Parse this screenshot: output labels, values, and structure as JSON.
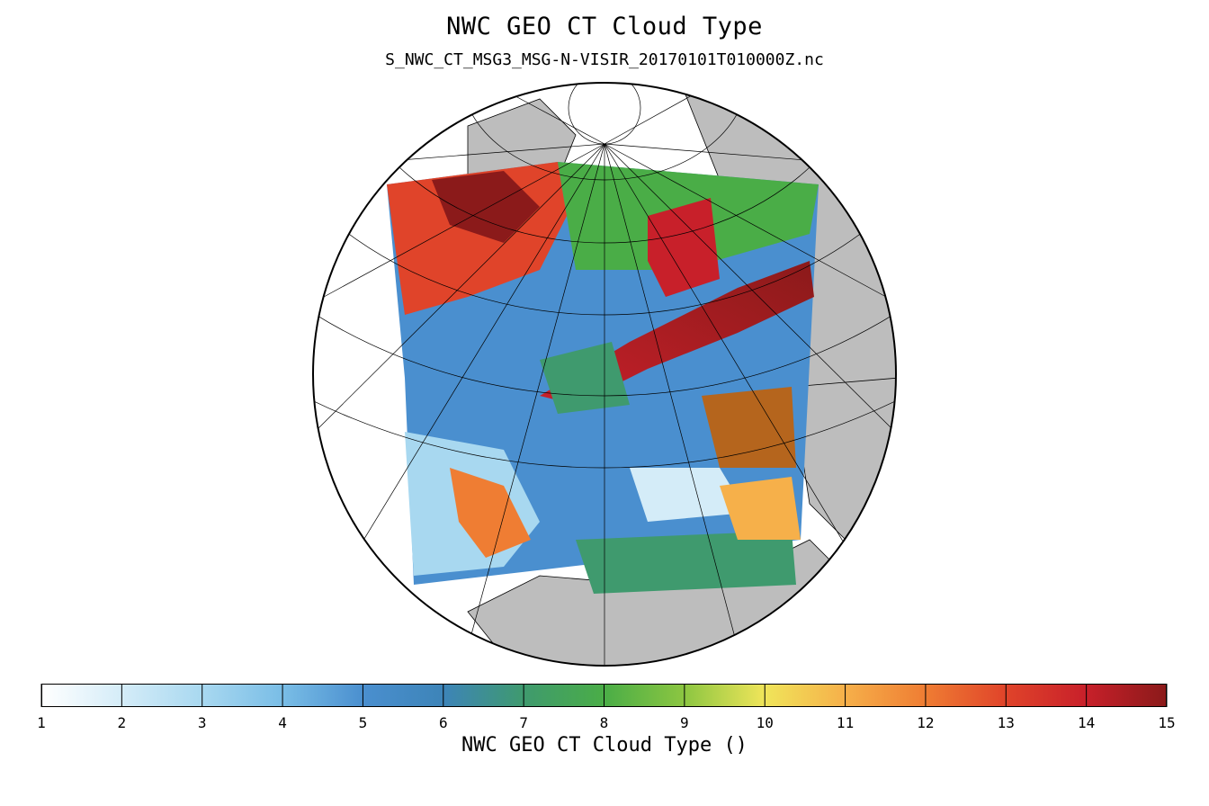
{
  "title": "NWC GEO CT Cloud Type",
  "subtitle": "S_NWC_CT_MSG3_MSG-N-VISIR_20170101T010000Z.nc",
  "colorbar": {
    "label": "NWC GEO CT Cloud Type ()",
    "min": 1,
    "max": 15,
    "ticks": [
      "1",
      "2",
      "3",
      "4",
      "5",
      "6",
      "7",
      "8",
      "9",
      "10",
      "11",
      "12",
      "13",
      "14",
      "15"
    ],
    "stops": [
      "#ffffff",
      "#d4ecf8",
      "#a8d8f0",
      "#79bde6",
      "#4a8fcf",
      "#3d84b8",
      "#3f9a6e",
      "#4aad47",
      "#8cc641",
      "#f0e55a",
      "#f6b04a",
      "#ef7d33",
      "#e0442a",
      "#c8202a",
      "#8b1a1a"
    ]
  },
  "map_colors": {
    "land": "#bdbdbd",
    "ocean": "#ffffff",
    "coastline": "#000000",
    "graticule": "#000000"
  }
}
